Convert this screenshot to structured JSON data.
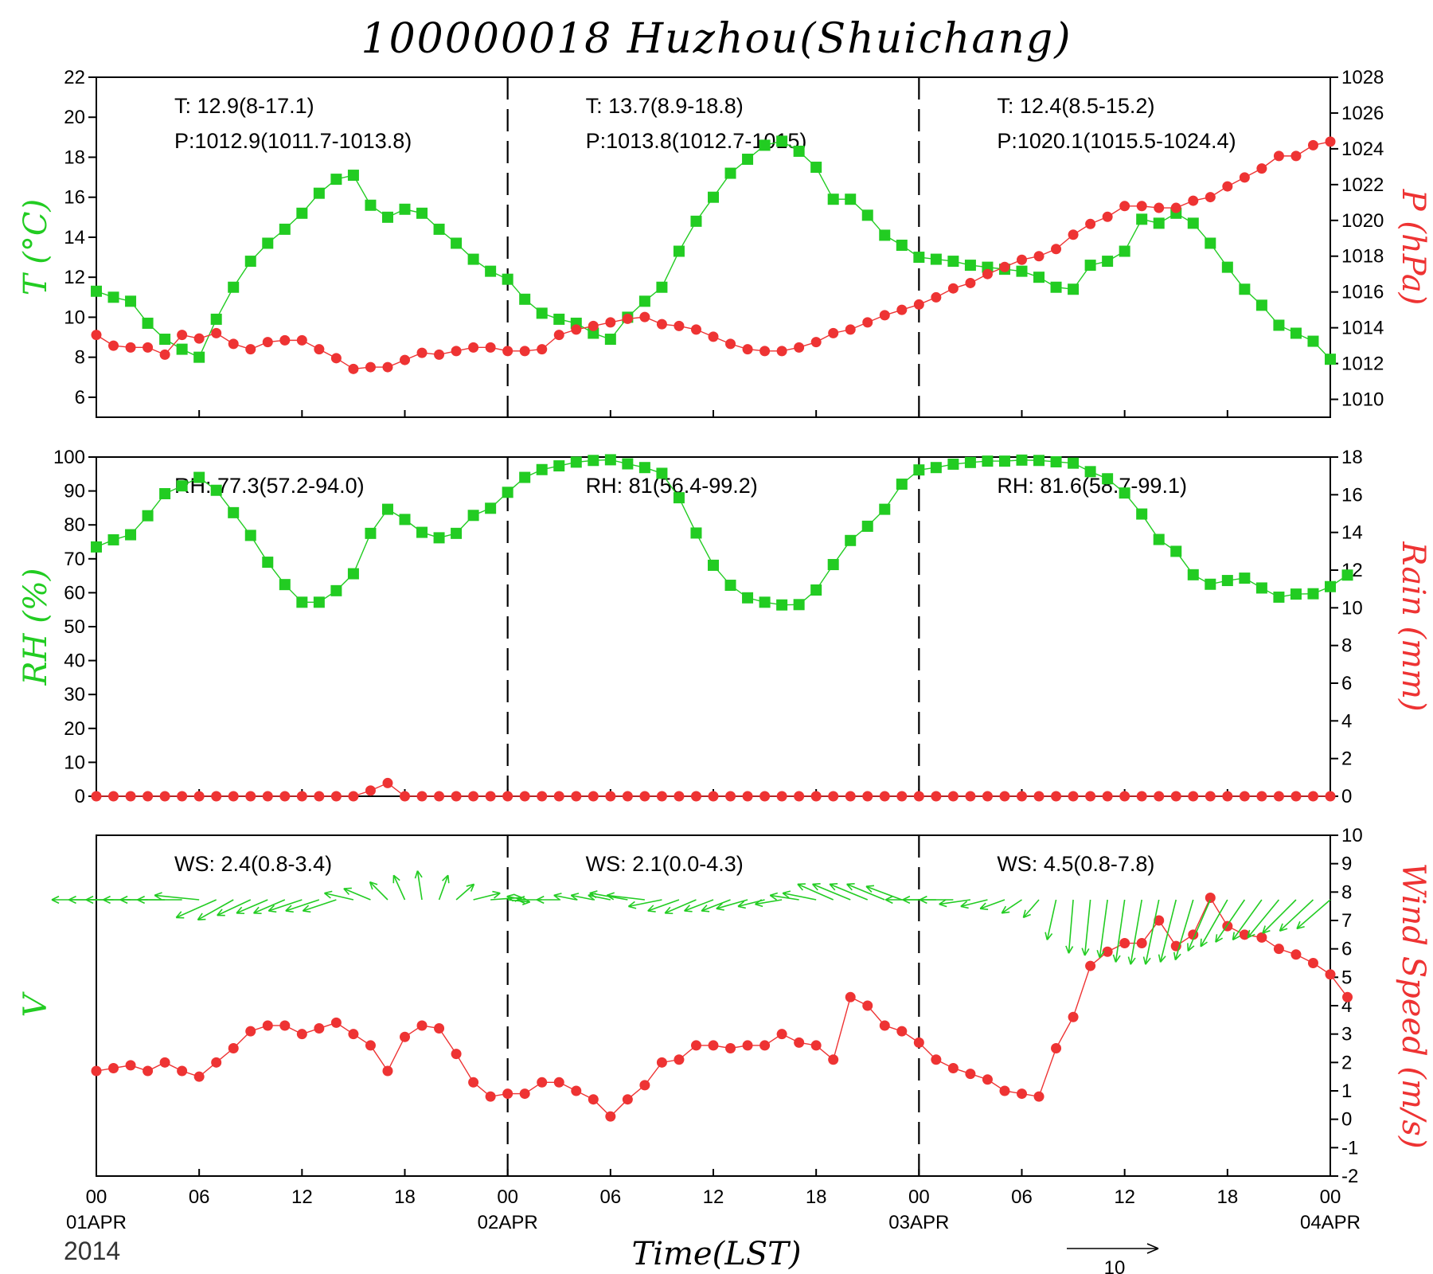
{
  "title": "100000018 Huzhou(Shuichang)",
  "colors": {
    "left": "#22cc22",
    "right": "#ee3333",
    "text": "#000000"
  },
  "x_axis": {
    "label": "Time(LST)",
    "year": "2014",
    "hour_ticks": [
      "00",
      "06",
      "12",
      "18",
      "00",
      "06",
      "12",
      "18",
      "00",
      "06",
      "12",
      "18",
      "00"
    ],
    "date_labels": [
      "01APR",
      "02APR",
      "03APR",
      "04APR"
    ]
  },
  "wind_scale_label": "10",
  "chart_data": [
    {
      "type": "line",
      "name": "temperature-pressure",
      "ylabel_left": "T (°C)",
      "ylabel_right": "P (hPa)",
      "ylim_left": [
        5,
        22
      ],
      "ylim_right": [
        1009,
        1028
      ],
      "yticks_left": [
        "6",
        "8",
        "10",
        "12",
        "14",
        "16",
        "18",
        "20",
        "22"
      ],
      "yticks_right": [
        "1010",
        "1012",
        "1014",
        "1016",
        "1018",
        "1020",
        "1022",
        "1024",
        "1026",
        "1028"
      ],
      "x_hours_start": 0,
      "x_hours_step": 1,
      "annotations": [
        [
          "T: 12.9(8-17.1)",
          "P:1012.9(1011.7-1013.8)"
        ],
        [
          "T: 13.7(8.9-18.8)",
          "P:1013.8(1012.7-1015)"
        ],
        [
          "T: 12.4(8.5-15.2)",
          "P:1020.1(1015.5-1024.4)"
        ]
      ],
      "series": [
        {
          "name": "T",
          "axis": "left",
          "marker": "square",
          "values": [
            11.3,
            11.0,
            10.8,
            9.7,
            8.9,
            8.4,
            8.0,
            9.9,
            11.5,
            12.8,
            13.7,
            14.4,
            15.2,
            16.2,
            16.9,
            17.1,
            15.6,
            15.0,
            15.4,
            15.2,
            14.4,
            13.7,
            12.9,
            12.3,
            11.9,
            10.9,
            10.2,
            9.9,
            9.7,
            9.2,
            8.9,
            10.0,
            10.8,
            11.5,
            13.3,
            14.8,
            16.0,
            17.2,
            17.9,
            18.6,
            18.8,
            18.3,
            17.5,
            15.9,
            15.9,
            15.1,
            14.1,
            13.6,
            13.0,
            12.9,
            12.8,
            12.6,
            12.5,
            12.4,
            12.3,
            12.0,
            11.5,
            11.4,
            12.6,
            12.8,
            13.3,
            14.9,
            14.7,
            15.2,
            14.7,
            13.7,
            12.5,
            11.4,
            10.6,
            9.6,
            9.2,
            8.8,
            7.9
          ]
        },
        {
          "name": "P",
          "axis": "right",
          "marker": "circle",
          "values": [
            1013.6,
            1013.0,
            1012.9,
            1012.9,
            1012.5,
            1013.6,
            1013.4,
            1013.7,
            1013.1,
            1012.8,
            1013.2,
            1013.3,
            1013.3,
            1012.8,
            1012.3,
            1011.7,
            1011.8,
            1011.8,
            1012.2,
            1012.6,
            1012.5,
            1012.7,
            1012.9,
            1012.9,
            1012.7,
            1012.7,
            1012.8,
            1013.6,
            1013.9,
            1014.1,
            1014.3,
            1014.5,
            1014.6,
            1014.2,
            1014.1,
            1013.9,
            1013.5,
            1013.1,
            1012.8,
            1012.7,
            1012.7,
            1012.9,
            1013.2,
            1013.7,
            1013.9,
            1014.3,
            1014.7,
            1015.0,
            1015.3,
            1015.7,
            1016.2,
            1016.5,
            1017.0,
            1017.4,
            1017.8,
            1018.0,
            1018.4,
            1019.2,
            1019.8,
            1020.2,
            1020.8,
            1020.8,
            1020.7,
            1020.7,
            1021.1,
            1021.3,
            1021.9,
            1022.4,
            1022.9,
            1023.6,
            1023.6,
            1024.2,
            1024.4
          ]
        }
      ]
    },
    {
      "type": "line",
      "name": "humidity-rain",
      "ylabel_left": "RH (%)",
      "ylabel_right": "Rain (mm)",
      "ylim_left": [
        0,
        100
      ],
      "ylim_right": [
        0,
        18
      ],
      "yticks_left": [
        "0",
        "10",
        "20",
        "30",
        "40",
        "50",
        "60",
        "70",
        "80",
        "90",
        "100"
      ],
      "yticks_right": [
        "0",
        "2",
        "4",
        "6",
        "8",
        "10",
        "12",
        "14",
        "16",
        "18"
      ],
      "x_hours_start": 0,
      "x_hours_step": 1,
      "annotations": [
        [
          "RH: 77.3(57.2-94.0)"
        ],
        [
          "RH: 81(56.4-99.2)"
        ],
        [
          "RH: 81.6(58.7-99.1)"
        ]
      ],
      "series": [
        {
          "name": "RH",
          "axis": "left",
          "marker": "square",
          "values": [
            73.5,
            75.6,
            77.1,
            82.7,
            89.2,
            91.5,
            94.0,
            90.2,
            83.6,
            76.9,
            69.0,
            62.4,
            57.2,
            57.2,
            60.6,
            65.6,
            77.5,
            84.6,
            81.6,
            77.8,
            76.2,
            77.5,
            82.8,
            84.9,
            89.6,
            94.0,
            96.3,
            97.4,
            98.5,
            99.0,
            99.2,
            98.0,
            96.9,
            95.2,
            88.0,
            77.6,
            68.1,
            62.2,
            58.5,
            57.2,
            56.4,
            56.5,
            60.8,
            68.3,
            75.4,
            79.6,
            84.6,
            92.0,
            96.2,
            96.9,
            97.9,
            98.4,
            98.8,
            98.8,
            99.1,
            99.0,
            98.6,
            98.2,
            95.7,
            93.6,
            89.4,
            83.2,
            75.7,
            72.2,
            65.3,
            62.5,
            63.6,
            64.3,
            61.4,
            58.7,
            59.6,
            59.7,
            61.8,
            65.2
          ]
        },
        {
          "name": "Rain",
          "axis": "right",
          "marker": "circle",
          "values": [
            0,
            0,
            0,
            0,
            0,
            0,
            0,
            0,
            0,
            0,
            0,
            0,
            0,
            0,
            0,
            0,
            0.3,
            0.7,
            0,
            0,
            0,
            0,
            0,
            0,
            0,
            0,
            0,
            0,
            0,
            0,
            0,
            0,
            0,
            0,
            0,
            0,
            0,
            0,
            0,
            0,
            0,
            0,
            0,
            0,
            0,
            0,
            0,
            0,
            0,
            0,
            0,
            0,
            0,
            0,
            0,
            0,
            0,
            0,
            0,
            0,
            0,
            0,
            0,
            0,
            0,
            0,
            0,
            0,
            0,
            0,
            0,
            0,
            0
          ]
        }
      ]
    },
    {
      "type": "line",
      "name": "wind",
      "ylabel_left": "V",
      "ylabel_right": "Wind Speed (m/s)",
      "ylim_right": [
        -2,
        10
      ],
      "yticks_right": [
        "-2",
        "-1",
        "0",
        "1",
        "2",
        "3",
        "4",
        "5",
        "6",
        "7",
        "8",
        "9",
        "10"
      ],
      "x_hours_start": 0,
      "x_hours_step": 1,
      "annotations": [
        [
          "WS: 2.4(0.8-3.4)"
        ],
        [
          "WS: 2.1(0.0-4.3)"
        ],
        [
          "WS: 4.5(0.8-7.8)"
        ]
      ],
      "series": [
        {
          "name": "Wind Speed",
          "axis": "right",
          "marker": "circle",
          "values": [
            1.7,
            1.8,
            1.9,
            1.7,
            2.0,
            1.7,
            1.5,
            2.0,
            2.5,
            3.1,
            3.3,
            3.3,
            3.0,
            3.2,
            3.4,
            3.0,
            2.6,
            1.7,
            2.9,
            3.3,
            3.2,
            2.3,
            1.3,
            0.8,
            0.9,
            0.9,
            1.3,
            1.3,
            1.0,
            0.7,
            0.1,
            0.7,
            1.2,
            2.0,
            2.1,
            2.6,
            2.6,
            2.5,
            2.6,
            2.6,
            3.0,
            2.7,
            2.6,
            2.1,
            4.3,
            4.0,
            3.3,
            3.1,
            2.7,
            2.1,
            1.8,
            1.6,
            1.4,
            1.0,
            0.9,
            0.8,
            2.5,
            3.6,
            5.4,
            5.9,
            6.2,
            6.2,
            7.0,
            6.1,
            6.5,
            7.8,
            6.8,
            6.5,
            6.4,
            6.0,
            5.8,
            5.5,
            5.1,
            4.3
          ]
        },
        {
          "name": "V",
          "axis": "left",
          "marker": "barb",
          "u": [
            -4.0,
            -4.0,
            -4.0,
            -4.0,
            -4.0,
            -4.0,
            -4.0,
            -3.6,
            -3.2,
            -3.0,
            -2.8,
            -2.8,
            -3.0,
            -3.0,
            -3.0,
            -2.6,
            -2.4,
            -1.6,
            -1.0,
            -0.4,
            0.8,
            1.6,
            2.4,
            2.8,
            2.0,
            -1.6,
            -2.2,
            -2.0,
            -2.0,
            -2.0,
            -2.0,
            -3.4,
            -3.4,
            -3.0,
            -2.8,
            -2.8,
            -2.6,
            -2.6,
            -2.8,
            -2.4,
            -2.4,
            -2.6,
            -3.0,
            -3.2,
            -3.4,
            -3.4,
            -3.4,
            -3.2,
            -3.0,
            -3.0,
            -3.0,
            -2.8,
            -2.4,
            -2.2,
            -1.8,
            -1.4,
            -0.8,
            -0.4,
            -0.5,
            -0.7,
            -0.8,
            -1.0,
            -1.2,
            -1.4,
            -1.6,
            -2.0,
            -2.4,
            -2.6,
            -2.6,
            -2.8,
            -3.0,
            -3.0,
            -3.0
          ],
          "v": [
            0,
            0,
            0,
            0,
            0,
            0,
            0.4,
            -1.6,
            -1.8,
            -1.4,
            -1.2,
            -1.2,
            -1.0,
            -1.0,
            -1.0,
            0.6,
            1.0,
            1.6,
            2.2,
            2.6,
            2.2,
            1.4,
            0.6,
            0.2,
            -0.2,
            0.3,
            0,
            0,
            0.4,
            0.4,
            0.4,
            0.6,
            0.4,
            -0.6,
            -1.0,
            -1.2,
            -1.0,
            -1.0,
            -0.8,
            -0.6,
            -0.4,
            0.4,
            0.6,
            1.4,
            1.4,
            1.4,
            1.4,
            1.2,
            0,
            0,
            0,
            -0.4,
            -0.6,
            -0.8,
            -1.2,
            -1.6,
            -3.6,
            -4.8,
            -5.0,
            -5.2,
            -5.6,
            -5.8,
            -5.8,
            -5.6,
            -5.4,
            -4.6,
            -4.2,
            -3.8,
            -3.6,
            -3.4,
            -3.0,
            -2.8,
            -2.6
          ]
        }
      ]
    }
  ]
}
